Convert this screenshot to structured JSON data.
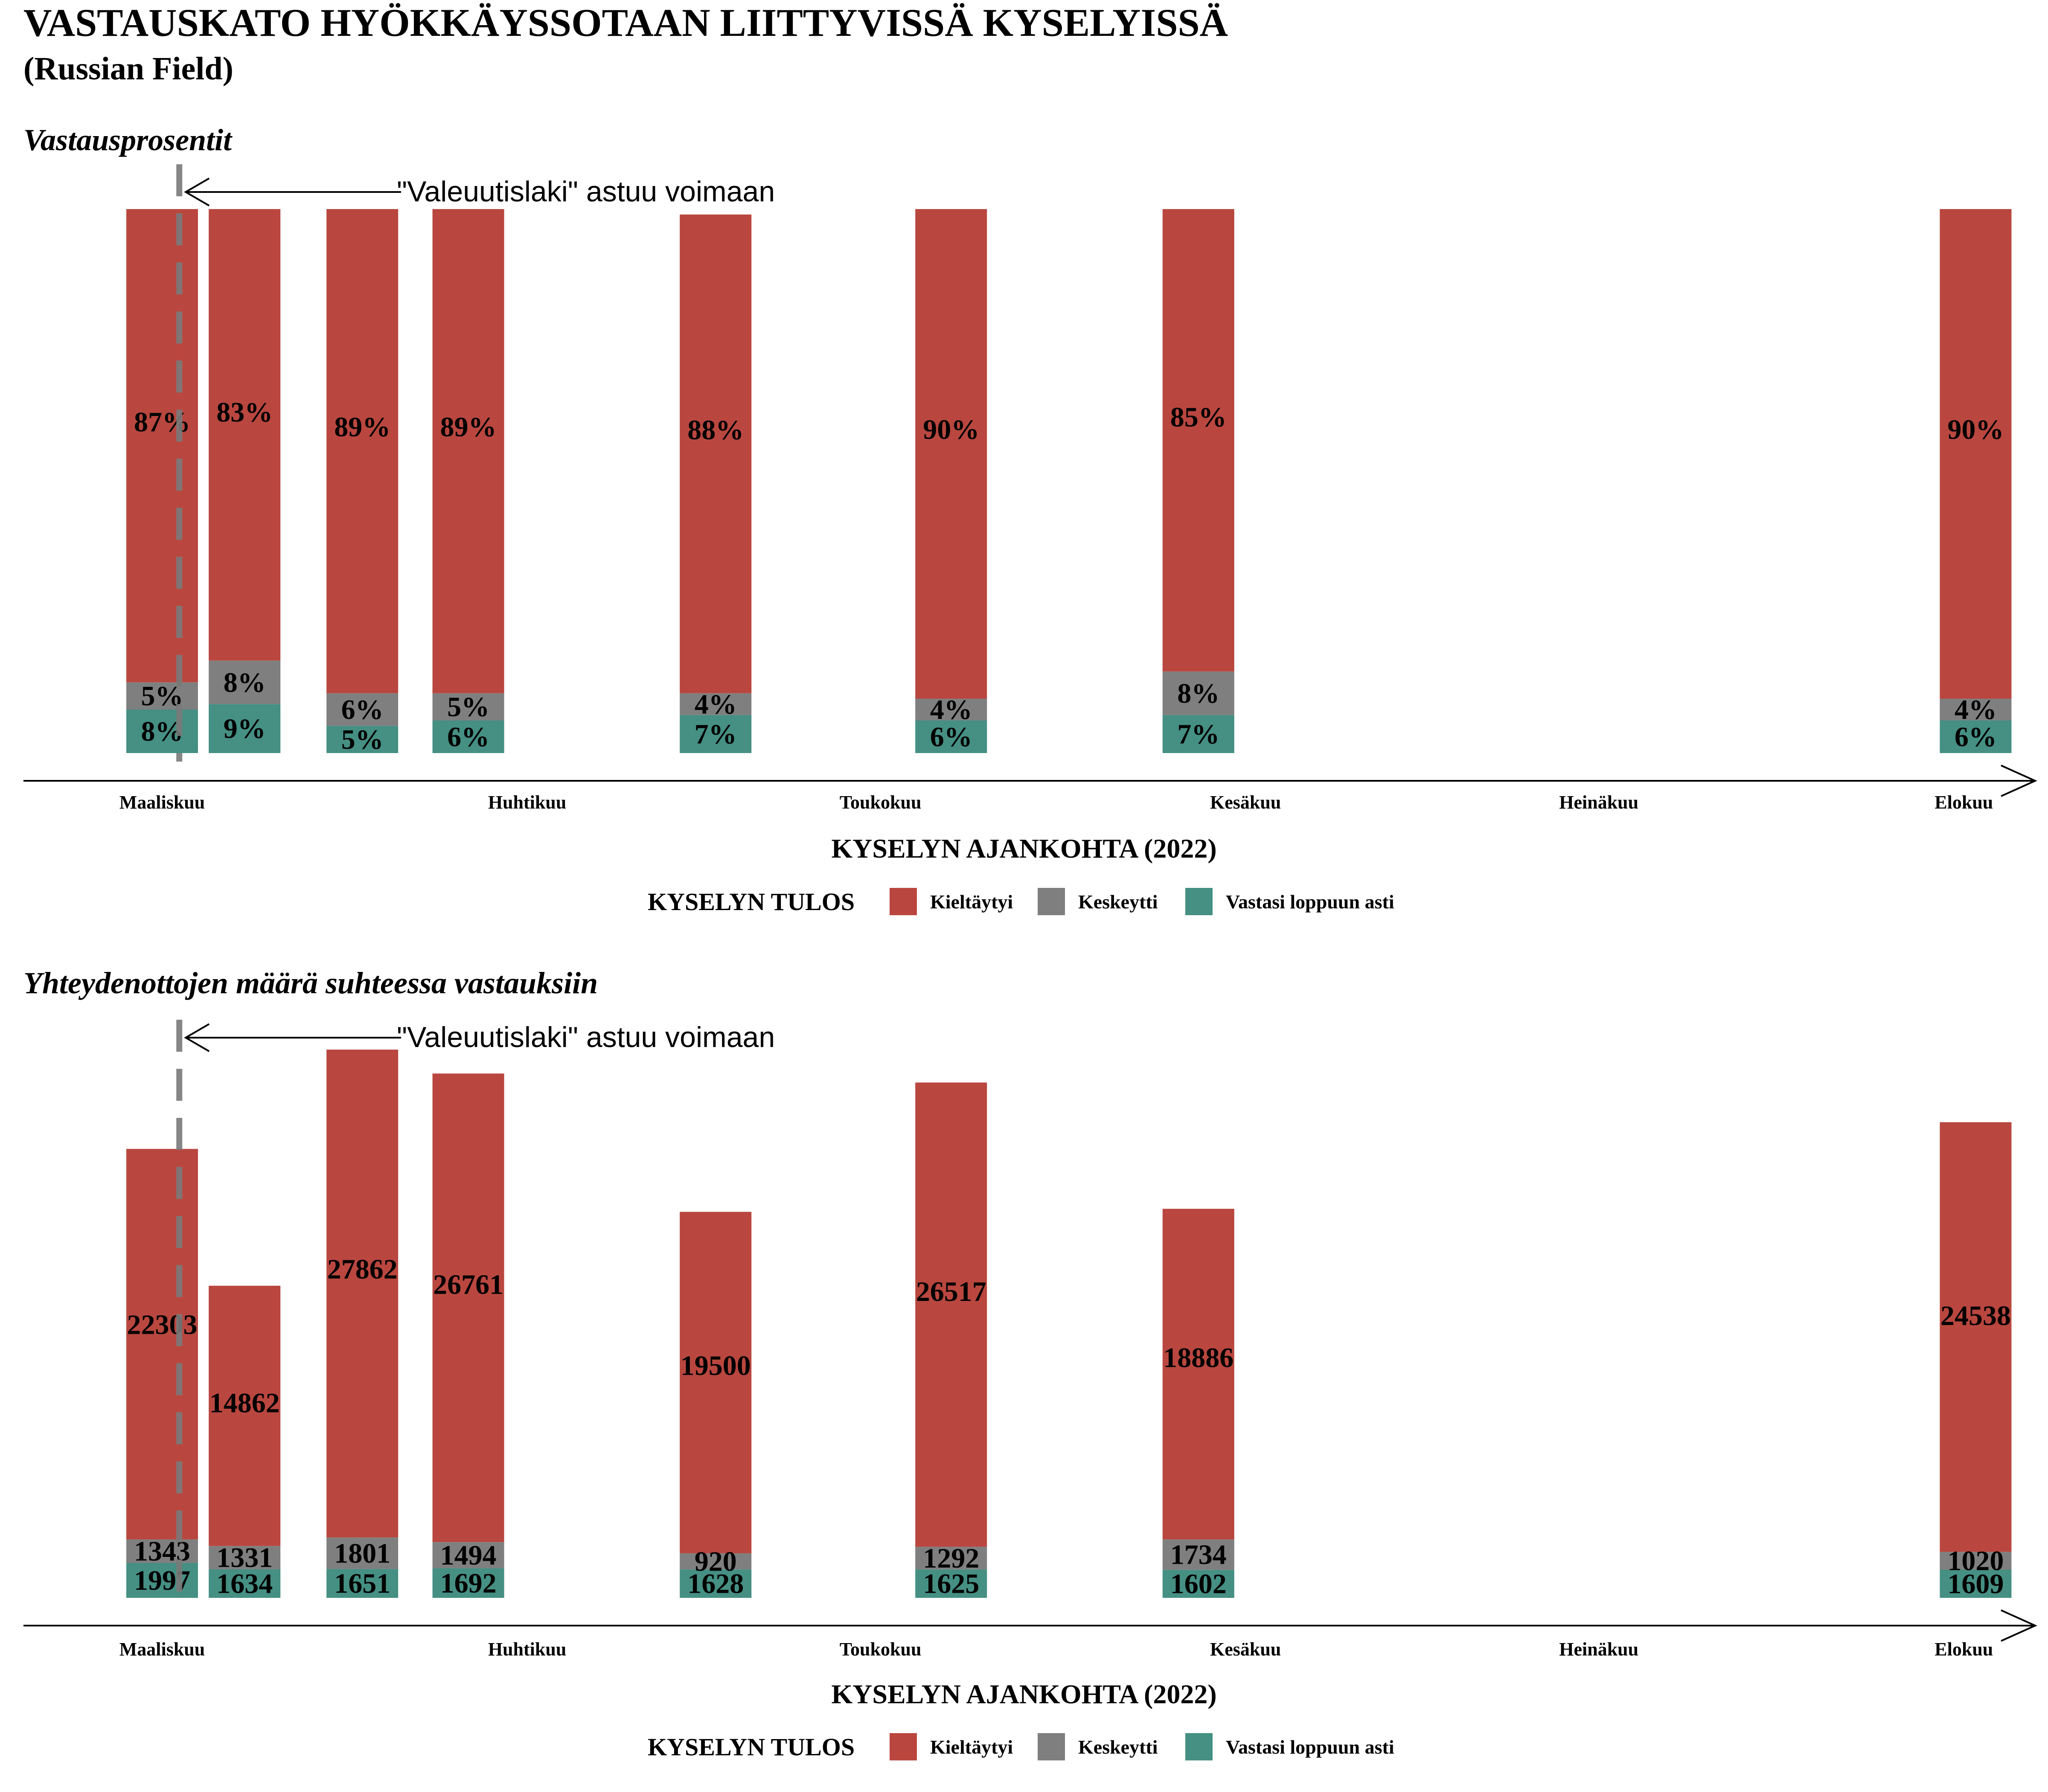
{
  "title": "VASTAUSKATO HYÖKKÄYSSOTAAN LIITTYVISSÄ KYSELYISSÄ",
  "subtitle": "(Russian Field)",
  "colors": {
    "Kieltäytyi": "#b9473f",
    "Keskeytti": "#7f7f7f",
    "Vastasi loppuun asti": "#458f83",
    "axis": "#000000",
    "event_line": "#7a7a7a"
  },
  "chart_data": [
    {
      "type": "bar",
      "stacked": true,
      "title": "Vastausprosentit",
      "xlabel": "KYSELYN AJANKOHTA (2022)",
      "ylabel": "",
      "x_tick_labels": [
        "Maaliskuu",
        "Huhtikuu",
        "Toukokuu",
        "Kesäkuu",
        "Heinäkuu",
        "Elokuu"
      ],
      "x_tick_days": [
        0,
        31,
        61,
        92,
        122,
        153
      ],
      "x_axis_arrow": true,
      "grid": false,
      "legend_position": "bottom",
      "legend_title": "KYSELYN TULOS",
      "legend_entries": [
        "Kieltäytyi",
        "Keskeytti",
        "Vastasi loppuun asti"
      ],
      "event_marker": {
        "day": 2,
        "label": "\"Valeuutislaki\" astuu voimaan",
        "style": "dashed"
      },
      "bars": [
        {
          "day": 0,
          "values": {
            "Kieltäytyi": 87,
            "Keskeytti": 5,
            "Vastasi loppuun asti": 8
          },
          "labels": {
            "Kieltäytyi": "87%",
            "Keskeytti": "5%",
            "Vastasi loppuun asti": "8%"
          }
        },
        {
          "day": 7,
          "values": {
            "Kieltäytyi": 83,
            "Keskeytti": 8,
            "Vastasi loppuun asti": 9
          },
          "labels": {
            "Kieltäytyi": "83%",
            "Keskeytti": "8%",
            "Vastasi loppuun asti": "9%"
          }
        },
        {
          "day": 17,
          "values": {
            "Kieltäytyi": 89,
            "Keskeytti": 6,
            "Vastasi loppuun asti": 5
          },
          "labels": {
            "Kieltäytyi": "89%",
            "Keskeytti": "6%",
            "Vastasi loppuun asti": "5%"
          }
        },
        {
          "day": 26,
          "values": {
            "Kieltäytyi": 89,
            "Keskeytti": 5,
            "Vastasi loppuun asti": 6
          },
          "labels": {
            "Kieltäytyi": "89%",
            "Keskeytti": "5%",
            "Vastasi loppuun asti": "6%"
          }
        },
        {
          "day": 47,
          "values": {
            "Kieltäytyi": 88,
            "Keskeytti": 4,
            "Vastasi loppuun asti": 7
          },
          "labels": {
            "Kieltäytyi": "88%",
            "Keskeytti": "4%",
            "Vastasi loppuun asti": "7%"
          }
        },
        {
          "day": 67,
          "values": {
            "Kieltäytyi": 90,
            "Keskeytti": 4,
            "Vastasi loppuun asti": 6
          },
          "labels": {
            "Kieltäytyi": "90%",
            "Keskeytti": "4%",
            "Vastasi loppuun asti": "6%"
          }
        },
        {
          "day": 88,
          "values": {
            "Kieltäytyi": 85,
            "Keskeytti": 8,
            "Vastasi loppuun asti": 7
          },
          "labels": {
            "Kieltäytyi": "85%",
            "Keskeytti": "8%",
            "Vastasi loppuun asti": "7%"
          }
        },
        {
          "day": 154,
          "values": {
            "Kieltäytyi": 90,
            "Keskeytti": 4,
            "Vastasi loppuun asti": 6
          },
          "labels": {
            "Kieltäytyi": "90%",
            "Keskeytti": "4%",
            "Vastasi loppuun asti": "6%"
          }
        }
      ]
    },
    {
      "type": "bar",
      "stacked": true,
      "title": "Yhteydenottojen määrä suhteessa vastauksiin",
      "xlabel": "KYSELYN AJANKOHTA (2022)",
      "ylabel": "",
      "x_tick_labels": [
        "Maaliskuu",
        "Huhtikuu",
        "Toukokuu",
        "Kesäkuu",
        "Heinäkuu",
        "Elokuu"
      ],
      "x_tick_days": [
        0,
        31,
        61,
        92,
        122,
        153
      ],
      "x_axis_arrow": true,
      "grid": false,
      "legend_position": "bottom",
      "legend_title": "KYSELYN TULOS",
      "legend_entries": [
        "Kieltäytyi",
        "Keskeytti",
        "Vastasi loppuun asti"
      ],
      "event_marker": {
        "day": 2,
        "label": "\"Valeuutislaki\" astuu voimaan",
        "style": "dashed"
      },
      "bars": [
        {
          "day": 0,
          "values": {
            "Kieltäytyi": 22303,
            "Keskeytti": 1343,
            "Vastasi loppuun asti": 1997
          },
          "labels": {
            "Kieltäytyi": "22303",
            "Keskeytti": "1343",
            "Vastasi loppuun asti": "1997"
          }
        },
        {
          "day": 7,
          "values": {
            "Kieltäytyi": 14862,
            "Keskeytti": 1331,
            "Vastasi loppuun asti": 1634
          },
          "labels": {
            "Kieltäytyi": "14862",
            "Keskeytti": "1331",
            "Vastasi loppuun asti": "1634"
          }
        },
        {
          "day": 17,
          "values": {
            "Kieltäytyi": 27862,
            "Keskeytti": 1801,
            "Vastasi loppuun asti": 1651
          },
          "labels": {
            "Kieltäytyi": "27862",
            "Keskeytti": "1801",
            "Vastasi loppuun asti": "1651"
          }
        },
        {
          "day": 26,
          "values": {
            "Kieltäytyi": 26761,
            "Keskeytti": 1494,
            "Vastasi loppuun asti": 1692
          },
          "labels": {
            "Kieltäytyi": "26761",
            "Keskeytti": "1494",
            "Vastasi loppuun asti": "1692"
          }
        },
        {
          "day": 47,
          "values": {
            "Kieltäytyi": 19500,
            "Keskeytti": 920,
            "Vastasi loppuun asti": 1628
          },
          "labels": {
            "Kieltäytyi": "19500",
            "Keskeytti": "920",
            "Vastasi loppuun asti": "1628"
          }
        },
        {
          "day": 67,
          "values": {
            "Kieltäytyi": 26517,
            "Keskeytti": 1292,
            "Vastasi loppuun asti": 1625
          },
          "labels": {
            "Kieltäytyi": "26517",
            "Keskeytti": "1292",
            "Vastasi loppuun asti": "1625"
          }
        },
        {
          "day": 88,
          "values": {
            "Kieltäytyi": 18886,
            "Keskeytti": 1734,
            "Vastasi loppuun asti": 1602
          },
          "labels": {
            "Kieltäytyi": "18886",
            "Keskeytti": "1734",
            "Vastasi loppuun asti": "1602"
          }
        },
        {
          "day": 154,
          "values": {
            "Kieltäytyi": 24538,
            "Keskeytti": 1020,
            "Vastasi loppuun asti": 1609
          },
          "labels": {
            "Kieltäytyi": "24538",
            "Keskeytti": "1020",
            "Vastasi loppuun asti": "1609"
          }
        }
      ]
    }
  ]
}
